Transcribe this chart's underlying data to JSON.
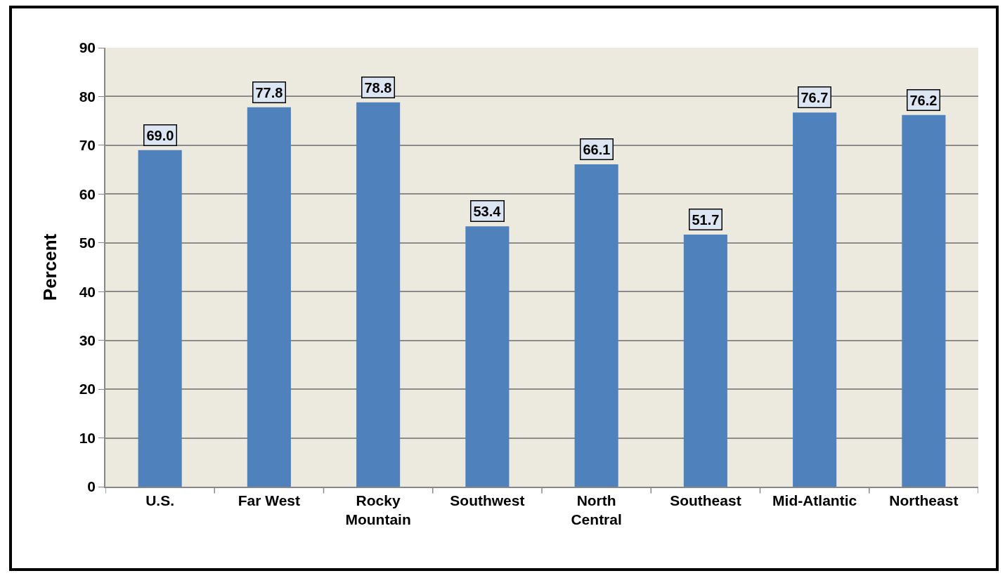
{
  "chart_data": {
    "type": "bar",
    "ylabel": "Percent",
    "categories": [
      "U.S.",
      "Far West",
      "Rocky Mountain",
      "Southwest",
      "North Central",
      "Southeast",
      "Mid-Atlantic",
      "Northeast"
    ],
    "values": [
      69.0,
      77.8,
      78.8,
      53.4,
      66.1,
      51.7,
      76.7,
      76.2
    ],
    "color": "#4f81bd",
    "ylim": [
      0,
      90
    ],
    "yticks": [
      0,
      10,
      20,
      30,
      40,
      50,
      60,
      70,
      80,
      90
    ],
    "value_labels": [
      "69.0",
      "77.8",
      "78.8",
      "53.4",
      "66.1",
      "51.7",
      "76.7",
      "76.2"
    ],
    "grid": "y",
    "legend": false
  }
}
